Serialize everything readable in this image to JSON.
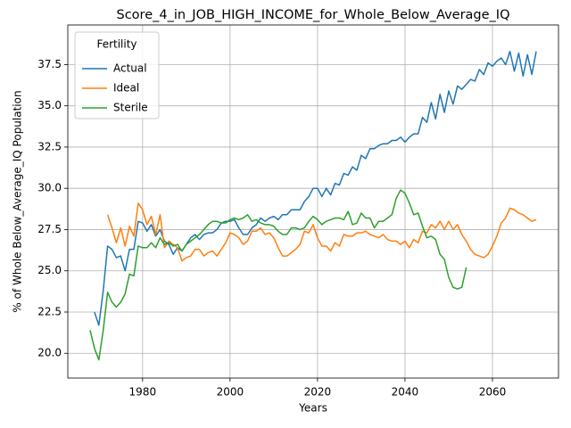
{
  "chart_data": {
    "type": "line",
    "title": "Score_4_in_JOB_HIGH_INCOME_for_Whole_Below_Average_IQ",
    "x_label": "Years",
    "y_label": "% of Whole Below_Average_IQ Population",
    "legend_title": "Fertility",
    "legend": "upper left",
    "grid": true,
    "x": [
      1968,
      1969,
      1970,
      1971,
      1972,
      1973,
      1974,
      1975,
      1976,
      1977,
      1978,
      1979,
      1980,
      1981,
      1982,
      1983,
      1984,
      1985,
      1986,
      1987,
      1988,
      1989,
      1990,
      1991,
      1992,
      1993,
      1994,
      1995,
      1996,
      1997,
      1998,
      1999,
      2000,
      2001,
      2002,
      2003,
      2004,
      2005,
      2006,
      2007,
      2008,
      2009,
      2010,
      2011,
      2012,
      2013,
      2014,
      2015,
      2016,
      2017,
      2018,
      2019,
      2020,
      2021,
      2022,
      2023,
      2024,
      2025,
      2026,
      2027,
      2028,
      2029,
      2030,
      2031,
      2032,
      2033,
      2034,
      2035,
      2036,
      2037,
      2038,
      2039,
      2040,
      2041,
      2042,
      2043,
      2044,
      2045,
      2046,
      2047,
      2048,
      2049,
      2050,
      2051,
      2052,
      2053,
      2054,
      2055,
      2056,
      2057,
      2058,
      2059,
      2060,
      2061,
      2062,
      2063,
      2064,
      2065,
      2066,
      2067,
      2068,
      2069,
      2070
    ],
    "series": [
      {
        "name": "Actual",
        "color": "#1f77b4",
        "values": [
          null,
          22.5,
          21.7,
          23.8,
          26.5,
          26.3,
          25.8,
          25.9,
          25.0,
          26.3,
          26.3,
          28.0,
          27.9,
          27.4,
          27.8,
          27.1,
          27.5,
          26.8,
          26.6,
          26.0,
          26.4,
          26.2,
          26.6,
          27.0,
          27.2,
          26.9,
          27.2,
          27.3,
          27.3,
          27.5,
          27.9,
          28.0,
          28.0,
          28.1,
          27.6,
          27.2,
          27.2,
          27.6,
          27.8,
          28.2,
          28.0,
          28.2,
          28.3,
          28.1,
          28.4,
          28.4,
          28.7,
          28.7,
          28.7,
          29.2,
          29.5,
          30.0,
          30.0,
          29.5,
          30.0,
          29.6,
          30.3,
          30.2,
          30.9,
          30.8,
          31.3,
          31.1,
          32.0,
          31.8,
          32.4,
          32.4,
          32.6,
          32.7,
          32.7,
          32.9,
          32.9,
          33.1,
          32.8,
          33.1,
          33.3,
          33.3,
          34.3,
          34.0,
          35.2,
          34.2,
          35.7,
          34.6,
          35.9,
          35.1,
          36.2,
          36.0,
          36.3,
          36.6,
          36.5,
          37.2,
          36.9,
          37.6,
          37.4,
          37.7,
          37.9,
          37.5,
          38.3,
          37.1,
          38.2,
          36.8,
          38.1,
          36.9,
          38.3
        ]
      },
      {
        "name": "Ideal",
        "color": "#ff7f0e",
        "values": [
          null,
          null,
          null,
          null,
          28.4,
          27.6,
          26.7,
          27.6,
          26.5,
          27.7,
          27.1,
          29.1,
          28.7,
          27.8,
          28.3,
          27.2,
          28.4,
          26.4,
          26.8,
          26.6,
          26.4,
          25.6,
          25.8,
          25.9,
          26.3,
          26.3,
          25.9,
          26.1,
          26.2,
          25.9,
          26.3,
          26.7,
          27.3,
          27.2,
          27.0,
          26.6,
          26.8,
          27.4,
          27.4,
          27.6,
          27.2,
          27.3,
          27.0,
          26.4,
          25.9,
          25.9,
          26.1,
          26.3,
          26.6,
          27.4,
          27.3,
          27.8,
          27.0,
          26.5,
          26.5,
          26.2,
          26.7,
          26.5,
          27.2,
          27.1,
          27.1,
          27.3,
          27.3,
          27.4,
          27.2,
          27.1,
          27.0,
          27.2,
          26.9,
          26.8,
          26.8,
          26.6,
          26.8,
          26.4,
          26.9,
          26.7,
          27.4,
          27.3,
          27.8,
          27.6,
          28.0,
          27.5,
          28.0,
          27.5,
          27.8,
          27.2,
          26.8,
          26.3,
          26.0,
          25.9,
          25.8,
          26.0,
          26.5,
          27.1,
          27.9,
          28.2,
          28.8,
          28.7,
          28.5,
          28.4,
          28.2,
          28.0,
          28.1
        ]
      },
      {
        "name": "Sterile",
        "color": "#2ca02c",
        "values": [
          21.4,
          20.3,
          19.6,
          21.4,
          23.7,
          23.1,
          22.8,
          23.1,
          23.6,
          24.8,
          24.7,
          26.5,
          26.4,
          26.4,
          26.7,
          26.4,
          27.0,
          26.6,
          26.7,
          26.5,
          26.6,
          26.2,
          26.6,
          26.8,
          27.0,
          27.2,
          27.5,
          27.8,
          28.0,
          28.0,
          27.9,
          27.9,
          28.1,
          28.2,
          28.1,
          28.2,
          28.4,
          28.0,
          28.1,
          27.9,
          27.8,
          27.8,
          27.7,
          27.4,
          27.2,
          27.2,
          27.6,
          27.6,
          27.5,
          27.6,
          28.0,
          28.3,
          28.1,
          27.8,
          28.0,
          28.1,
          28.2,
          28.2,
          28.1,
          28.6,
          27.8,
          27.9,
          28.5,
          28.2,
          28.2,
          27.6,
          28.0,
          28.0,
          28.2,
          28.4,
          29.4,
          29.9,
          29.7,
          29.1,
          28.4,
          28.5,
          27.7,
          27.0,
          27.1,
          26.9,
          26.0,
          25.7,
          24.6,
          24.0,
          23.9,
          24.0,
          25.2,
          null,
          null,
          null,
          null,
          null,
          null,
          null,
          null,
          null,
          null,
          null,
          null,
          null,
          null,
          null,
          null
        ]
      }
    ],
    "xlim": [
      1962.9,
      2075.1
    ],
    "ylim": [
      18.5,
      39.9
    ],
    "xticks": [
      1980,
      2000,
      2020,
      2040,
      2060
    ],
    "yticks": [
      {
        "value": 20,
        "label": "20.0"
      },
      22.5,
      {
        "value": 25,
        "label": "25.0"
      },
      27.5,
      {
        "value": 30,
        "label": "30.0"
      },
      32.5,
      {
        "value": 35,
        "label": "35.0"
      },
      37.5
    ]
  }
}
